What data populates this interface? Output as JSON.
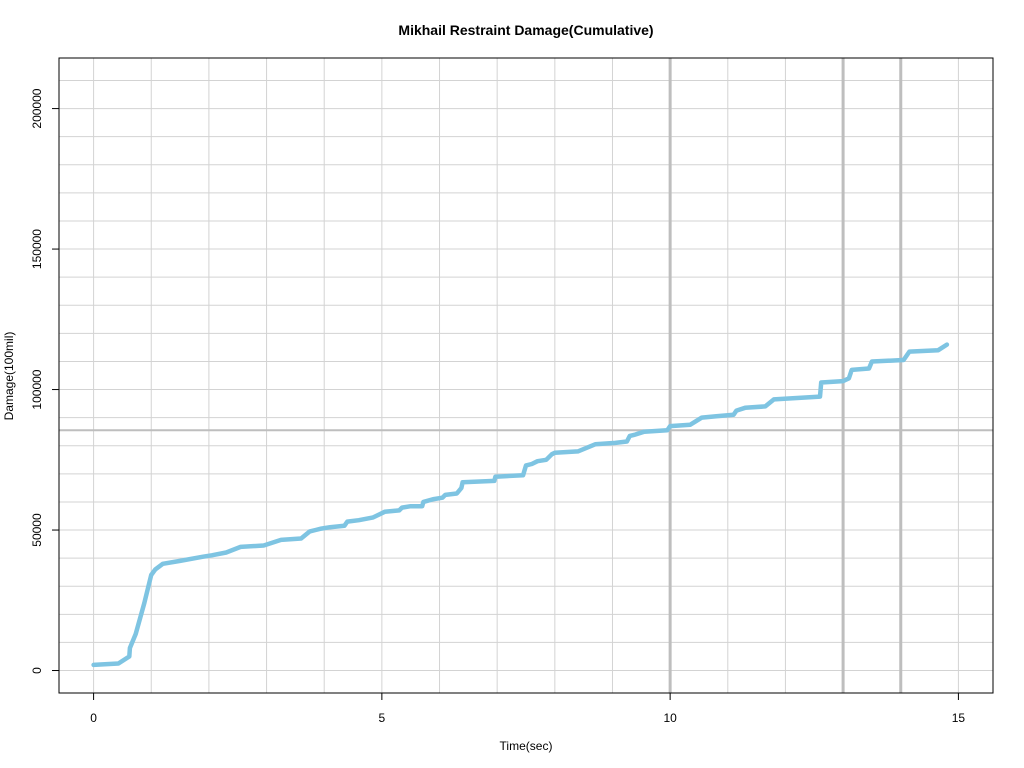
{
  "chart_data": {
    "type": "line",
    "title": "Mikhail Restraint Damage(Cumulative)",
    "xlabel": "Time(sec)",
    "ylabel": "Damage(100mil)",
    "xlim": [
      -0.6,
      15.6
    ],
    "ylim": [
      -8000,
      218000
    ],
    "x_ticks": [
      0,
      5,
      10,
      15
    ],
    "y_ticks": [
      0,
      50000,
      100000,
      150000,
      200000
    ],
    "x_tick_labels": [
      "0",
      "5",
      "10",
      "15"
    ],
    "y_tick_labels": [
      "0",
      "50000",
      "100000",
      "150000",
      "200000"
    ],
    "grid_x": [
      0,
      1,
      2,
      3,
      4,
      5,
      6,
      7,
      8,
      9,
      10,
      11,
      12,
      13,
      14,
      15
    ],
    "grid_y": [
      0,
      10000,
      20000,
      30000,
      40000,
      50000,
      60000,
      70000,
      80000,
      90000,
      100000,
      110000,
      120000,
      130000,
      140000,
      150000,
      160000,
      170000,
      180000,
      190000,
      200000,
      210000
    ],
    "vlines": [
      10,
      13,
      14
    ],
    "hlines": [
      85500
    ],
    "series": [
      {
        "color": "#7ec4e2",
        "x": [
          0,
          0.43,
          0.62,
          0.63,
          0.73,
          0.88,
          1.0,
          1.07,
          1.2,
          1.5,
          1.9,
          2.05,
          2.3,
          2.55,
          2.95,
          3.25,
          3.6,
          3.75,
          3.85,
          3.95,
          4.1,
          4.35,
          4.4,
          4.6,
          4.85,
          5.05,
          5.3,
          5.35,
          5.5,
          5.7,
          5.72,
          5.9,
          6.05,
          6.1,
          6.3,
          6.38,
          6.4,
          6.95,
          6.97,
          7.45,
          7.5,
          7.6,
          7.7,
          7.85,
          7.95,
          8.0,
          8.4,
          8.7,
          9.05,
          9.25,
          9.3,
          9.4,
          9.55,
          9.95,
          10.0,
          10.35,
          10.55,
          10.8,
          11.1,
          11.15,
          11.3,
          11.65,
          11.8,
          12.2,
          12.6,
          12.62,
          13.0,
          13.1,
          13.15,
          13.45,
          13.5,
          14.05,
          14.15,
          14.65,
          14.8
        ],
        "values": [
          2000,
          2500,
          5000,
          8000,
          13000,
          24000,
          34000,
          36000,
          38000,
          39000,
          40500,
          41000,
          42000,
          44000,
          44500,
          46500,
          47000,
          49500,
          50000,
          50500,
          51000,
          51500,
          53000,
          53500,
          54500,
          56500,
          57000,
          58000,
          58500,
          58500,
          60000,
          61000,
          61500,
          62500,
          63000,
          65000,
          67000,
          67500,
          69000,
          69500,
          73000,
          73500,
          74500,
          75000,
          77000,
          77500,
          78000,
          80500,
          81000,
          81500,
          83500,
          84000,
          85000,
          85500,
          87000,
          87500,
          90000,
          90500,
          91000,
          92500,
          93500,
          94000,
          96500,
          97000,
          97500,
          102500,
          103000,
          104000,
          107000,
          107500,
          110000,
          110500,
          113500,
          114000,
          116000
        ]
      }
    ]
  }
}
